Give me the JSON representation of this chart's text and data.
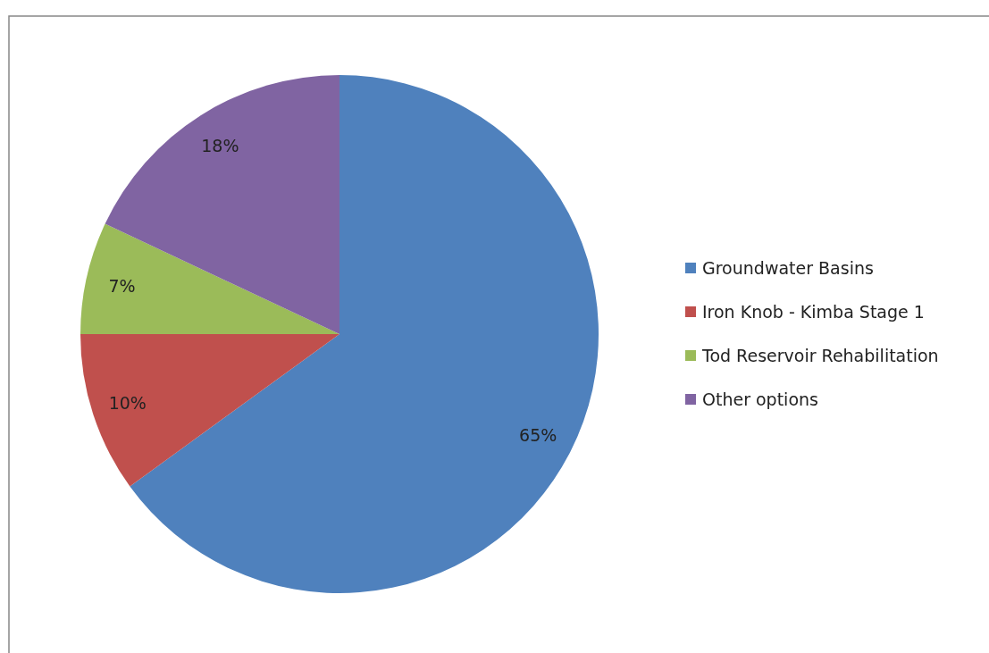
{
  "chart_data": {
    "type": "pie",
    "categories": [
      "Groundwater Basins",
      "Iron Knob - Kimba Stage 1",
      "Tod Reservoir Rehabilitation",
      "Other options"
    ],
    "values": [
      65,
      10,
      7,
      18
    ],
    "colors": [
      "#4f81bd",
      "#c0504d",
      "#9bbb59",
      "#8064a2"
    ],
    "value_labels": [
      "65%",
      "10%",
      "7%",
      "18%"
    ],
    "legend": "right"
  }
}
